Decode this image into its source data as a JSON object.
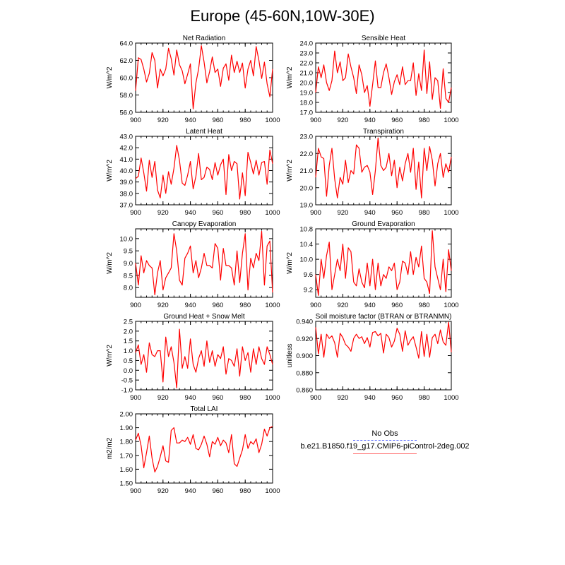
{
  "title": "Europe (45-60N,10W-30E)",
  "legend": {
    "entries": [
      {
        "label": "No Obs",
        "color": "#6677ff",
        "style": "dashed"
      },
      {
        "label": "b.e21.B1850.f19_g17.CMIP6-piControl-2deg.002",
        "color": "#ff0000",
        "style": "solid"
      }
    ]
  },
  "chart_data": [
    {
      "type": "line",
      "title": "Net Radiation",
      "ylabel": "W/m^2",
      "xlim": [
        900,
        1000
      ],
      "ylim": [
        56,
        64
      ],
      "xticks": [
        900,
        920,
        940,
        960,
        980,
        1000
      ],
      "yticks": [
        "56.0",
        "58.0",
        "60.0",
        "62.0",
        "64.0"
      ],
      "x_start": 900,
      "x_step": 2,
      "color": "#ff0000",
      "values": [
        58.5,
        62.3,
        62.1,
        61.0,
        59.5,
        60.5,
        62.9,
        62.0,
        58.8,
        61.0,
        60.2,
        61.0,
        63.4,
        62.2,
        60.3,
        63.2,
        61.5,
        60.8,
        59.3,
        60.4,
        61.6,
        56.4,
        59.4,
        61.0,
        63.7,
        61.8,
        59.4,
        60.7,
        62.4,
        60.6,
        61.0,
        59.0,
        61.1,
        61.6,
        59.7,
        62.6,
        60.6,
        61.9,
        60.6,
        61.7,
        58.8,
        61.0,
        62.0,
        60.2,
        63.6,
        62.0,
        59.9,
        61.8,
        59.3,
        57.8,
        61.0
      ]
    },
    {
      "type": "line",
      "title": "Sensible Heat",
      "ylabel": "W/m^2",
      "xlim": [
        900,
        1000
      ],
      "ylim": [
        17,
        24
      ],
      "xticks": [
        900,
        920,
        940,
        960,
        980,
        1000
      ],
      "yticks": [
        "17.0",
        "18.0",
        "19.0",
        "20.0",
        "21.0",
        "22.0",
        "23.0",
        "24.0"
      ],
      "x_start": 900,
      "x_step": 2,
      "color": "#ff0000",
      "values": [
        19.0,
        21.6,
        20.5,
        21.8,
        20.0,
        19.2,
        20.2,
        23.2,
        21.0,
        22.1,
        20.2,
        20.5,
        22.9,
        21.6,
        20.5,
        18.9,
        21.8,
        20.8,
        19.0,
        19.7,
        17.6,
        19.8,
        22.2,
        19.5,
        19.5,
        21.0,
        21.9,
        20.5,
        18.8,
        20.1,
        20.8,
        19.8,
        21.6,
        19.8,
        20.2,
        20.2,
        22.0,
        18.7,
        20.9,
        19.2,
        23.3,
        18.9,
        22.1,
        18.3,
        20.5,
        20.2,
        17.4,
        21.4,
        18.4,
        18.0,
        19.5
      ]
    },
    {
      "type": "line",
      "title": "Latent Heat",
      "ylabel": "W/m^2",
      "xlim": [
        900,
        1000
      ],
      "ylim": [
        37,
        43
      ],
      "xticks": [
        900,
        920,
        940,
        960,
        980,
        1000
      ],
      "yticks": [
        "37.0",
        "38.0",
        "39.0",
        "40.0",
        "41.0",
        "42.0",
        "43.0"
      ],
      "x_start": 900,
      "x_step": 2,
      "color": "#ff0000",
      "values": [
        39.3,
        39.5,
        41.1,
        39.8,
        38.2,
        40.9,
        39.4,
        40.8,
        38.3,
        37.6,
        39.6,
        38.0,
        39.9,
        38.8,
        40.2,
        42.2,
        40.9,
        38.9,
        38.7,
        39.6,
        40.8,
        38.4,
        39.5,
        41.5,
        39.2,
        39.4,
        40.3,
        40.1,
        39.2,
        40.7,
        39.6,
        40.5,
        41.0,
        37.9,
        41.4,
        40.0,
        40.8,
        40.6,
        37.5,
        39.8,
        37.8,
        41.6,
        40.7,
        39.7,
        40.9,
        39.6,
        40.7,
        40.8,
        38.8,
        41.8,
        40.6
      ]
    },
    {
      "type": "line",
      "title": "Transpiration",
      "ylabel": "W/m^2",
      "xlim": [
        900,
        1000
      ],
      "ylim": [
        19,
        23
      ],
      "xticks": [
        900,
        920,
        940,
        960,
        980,
        1000
      ],
      "yticks": [
        "19.0",
        "20.0",
        "21.0",
        "22.0",
        "23.0"
      ],
      "x_start": 900,
      "x_step": 2,
      "color": "#ff0000",
      "values": [
        20.6,
        22.3,
        21.8,
        21.7,
        19.5,
        21.3,
        22.3,
        20.5,
        19.4,
        20.6,
        20.2,
        21.6,
        20.3,
        21.0,
        20.8,
        22.5,
        22.3,
        20.9,
        21.2,
        21.3,
        20.9,
        19.6,
        21.0,
        22.9,
        21.3,
        21.0,
        21.2,
        22.0,
        20.7,
        21.6,
        20.0,
        21.2,
        20.4,
        21.4,
        22.0,
        20.9,
        22.3,
        19.9,
        21.5,
        19.4,
        22.3,
        21.0,
        22.4,
        21.6,
        20.1,
        21.4,
        22.0,
        20.6,
        21.4,
        20.9,
        21.8
      ]
    },
    {
      "type": "line",
      "title": "Canopy Evaporation",
      "ylabel": "W/m^2",
      "xlim": [
        900,
        1000
      ],
      "ylim": [
        7.6,
        10.4
      ],
      "xticks": [
        900,
        920,
        940,
        960,
        980,
        1000
      ],
      "yticks": [
        "8.0",
        "8.5",
        "9.0",
        "9.5",
        "10.0"
      ],
      "x_start": 900,
      "x_step": 2,
      "color": "#ff0000",
      "values": [
        9.0,
        8.1,
        9.3,
        8.6,
        9.1,
        8.9,
        8.8,
        7.7,
        8.6,
        9.1,
        7.9,
        8.4,
        8.6,
        8.8,
        10.2,
        9.5,
        8.3,
        8.1,
        9.2,
        9.4,
        9.7,
        8.6,
        9.1,
        8.4,
        8.8,
        9.4,
        8.9,
        8.9,
        8.8,
        9.8,
        9.6,
        8.3,
        9.6,
        8.9,
        8.9,
        8.8,
        8.1,
        9.5,
        8.2,
        9.4,
        10.2,
        7.9,
        9.2,
        8.8,
        9.4,
        9.1,
        10.3,
        8.1,
        9.7,
        9.9,
        7.8
      ]
    },
    {
      "type": "line",
      "title": "Ground Evaporation",
      "ylabel": "W/m^2",
      "xlim": [
        900,
        1000
      ],
      "ylim": [
        9.0,
        10.8
      ],
      "xticks": [
        900,
        920,
        940,
        960,
        980,
        1000
      ],
      "yticks": [
        "9.2",
        "9.6",
        "10.0",
        "10.4",
        "10.8"
      ],
      "x_start": 900,
      "x_step": 2,
      "color": "#ff0000",
      "values": [
        9.6,
        9.05,
        10.0,
        9.5,
        10.1,
        10.45,
        9.2,
        9.6,
        10.0,
        9.7,
        10.4,
        9.5,
        10.3,
        10.2,
        9.4,
        9.3,
        9.75,
        9.4,
        9.25,
        9.9,
        9.3,
        10.0,
        9.2,
        9.9,
        9.3,
        9.6,
        9.5,
        9.8,
        9.7,
        9.9,
        9.2,
        9.4,
        9.95,
        9.9,
        9.6,
        10.2,
        9.6,
        10.05,
        9.8,
        10.35,
        9.5,
        9.4,
        9.1,
        10.75,
        9.8,
        9.5,
        9.2,
        10.0,
        9.15,
        10.25,
        9.7
      ]
    },
    {
      "type": "line",
      "title": "Ground Heat + Snow Melt",
      "ylabel": "W/m^2",
      "xlim": [
        900,
        1000
      ],
      "ylim": [
        -1.0,
        2.5
      ],
      "xticks": [
        900,
        920,
        940,
        960,
        980,
        1000
      ],
      "yticks": [
        "-1.0",
        "-0.5",
        "0.0",
        "0.5",
        "1.0",
        "1.5",
        "2.0",
        "2.5"
      ],
      "x_start": 900,
      "x_step": 2,
      "color": "#ff0000",
      "values": [
        0.9,
        1.3,
        0.3,
        0.8,
        -0.1,
        1.4,
        0.8,
        0.7,
        1.0,
        1.0,
        -0.6,
        1.7,
        0.7,
        1.2,
        0.4,
        -0.9,
        2.1,
        0.1,
        0.7,
        0.1,
        1.6,
        0.3,
        -0.1,
        0.6,
        1.0,
        0.2,
        1.5,
        0.4,
        1.0,
        0.2,
        0.8,
        0.6,
        1.2,
        -0.2,
        0.6,
        0.5,
        0.2,
        1.1,
        -0.3,
        1.2,
        0.5,
        0.9,
        -0.1,
        1.1,
        0.3,
        1.2,
        0.6,
        0.3,
        1.2,
        0.8,
        0.3
      ]
    },
    {
      "type": "line",
      "title": "Soil moisture factor (BTRAN or BTRANMN)",
      "ylabel": "unitless",
      "xlim": [
        900,
        1000
      ],
      "ylim": [
        0.86,
        0.94
      ],
      "xticks": [
        900,
        920,
        940,
        960,
        980,
        1000
      ],
      "yticks": [
        "0.860",
        "0.880",
        "0.900",
        "0.920",
        "0.940"
      ],
      "x_start": 900,
      "x_step": 2,
      "color": "#ff0000",
      "values": [
        0.933,
        0.902,
        0.925,
        0.898,
        0.925,
        0.92,
        0.923,
        0.915,
        0.898,
        0.926,
        0.921,
        0.913,
        0.91,
        0.905,
        0.92,
        0.925,
        0.92,
        0.922,
        0.914,
        0.921,
        0.91,
        0.927,
        0.928,
        0.923,
        0.926,
        0.903,
        0.925,
        0.921,
        0.91,
        0.917,
        0.932,
        0.925,
        0.905,
        0.929,
        0.912,
        0.918,
        0.922,
        0.91,
        0.897,
        0.928,
        0.899,
        0.925,
        0.898,
        0.921,
        0.925,
        0.914,
        0.93,
        0.916,
        0.912,
        0.939,
        0.904
      ]
    },
    {
      "type": "line",
      "title": "Total LAI",
      "ylabel": "m2/m2",
      "xlim": [
        900,
        1000
      ],
      "ylim": [
        1.5,
        2.0
      ],
      "xticks": [
        900,
        920,
        940,
        960,
        980,
        1000
      ],
      "yticks": [
        "1.50",
        "1.60",
        "1.70",
        "1.80",
        "1.90",
        "2.00"
      ],
      "x_start": 900,
      "x_step": 2,
      "color": "#ff0000",
      "values": [
        1.81,
        1.86,
        1.77,
        1.61,
        1.72,
        1.84,
        1.68,
        1.58,
        1.62,
        1.69,
        1.77,
        1.66,
        1.65,
        1.88,
        1.9,
        1.79,
        1.79,
        1.81,
        1.8,
        1.83,
        1.78,
        1.85,
        1.75,
        1.74,
        1.78,
        1.84,
        1.78,
        1.69,
        1.8,
        1.78,
        1.83,
        1.77,
        1.81,
        1.79,
        1.72,
        1.85,
        1.64,
        1.62,
        1.68,
        1.74,
        1.85,
        1.75,
        1.8,
        1.78,
        1.82,
        1.72,
        1.78,
        1.89,
        1.84,
        1.9,
        1.91
      ]
    }
  ]
}
